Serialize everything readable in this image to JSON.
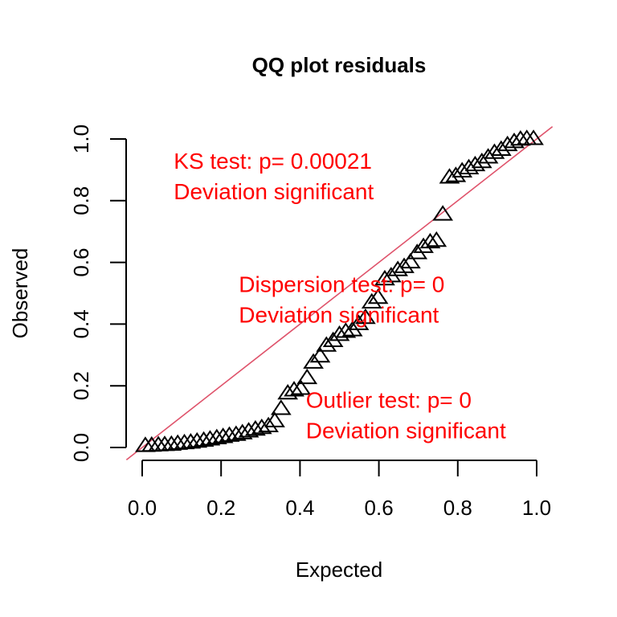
{
  "chart_data": {
    "type": "scatter",
    "title": "QQ plot residuals",
    "xlabel": "Expected",
    "ylabel": "Observed",
    "xlim": [
      0,
      1
    ],
    "ylim": [
      0,
      1
    ],
    "xticks": [
      "0.0",
      "0.2",
      "0.4",
      "0.6",
      "0.8",
      "1.0"
    ],
    "yticks": [
      "0.0",
      "0.2",
      "0.4",
      "0.6",
      "0.8",
      "1.0"
    ],
    "xtick_values": [
      0,
      0.2,
      0.4,
      0.6,
      0.8,
      1.0
    ],
    "ytick_values": [
      0,
      0.2,
      0.4,
      0.6,
      0.8,
      1.0
    ],
    "grid": false,
    "marker": "open-triangle",
    "reference_line": {
      "type": "identity",
      "slope": 1,
      "intercept": 0,
      "color": "#df536b"
    },
    "series": [
      {
        "name": "residuals",
        "color": "#000000",
        "x": [
          0.008,
          0.024,
          0.041,
          0.057,
          0.074,
          0.09,
          0.107,
          0.123,
          0.139,
          0.156,
          0.172,
          0.189,
          0.205,
          0.221,
          0.238,
          0.254,
          0.27,
          0.287,
          0.303,
          0.32,
          0.336,
          0.352,
          0.369,
          0.385,
          0.402,
          0.418,
          0.434,
          0.451,
          0.467,
          0.484,
          0.5,
          0.516,
          0.533,
          0.549,
          0.566,
          0.582,
          0.598,
          0.615,
          0.631,
          0.648,
          0.664,
          0.68,
          0.697,
          0.713,
          0.73,
          0.746,
          0.762,
          0.779,
          0.795,
          0.811,
          0.828,
          0.844,
          0.861,
          0.877,
          0.893,
          0.91,
          0.926,
          0.943,
          0.959,
          0.975,
          0.992
        ],
        "y": [
          0.005,
          0.006,
          0.007,
          0.008,
          0.009,
          0.012,
          0.014,
          0.016,
          0.019,
          0.022,
          0.026,
          0.03,
          0.034,
          0.038,
          0.041,
          0.046,
          0.052,
          0.058,
          0.063,
          0.069,
          0.085,
          0.125,
          0.175,
          0.185,
          0.19,
          0.225,
          0.275,
          0.295,
          0.33,
          0.345,
          0.365,
          0.375,
          0.38,
          0.4,
          0.42,
          0.47,
          0.485,
          0.545,
          0.555,
          0.575,
          0.585,
          0.6,
          0.63,
          0.65,
          0.665,
          0.67,
          0.755,
          0.875,
          0.88,
          0.895,
          0.905,
          0.915,
          0.925,
          0.94,
          0.955,
          0.965,
          0.98,
          0.99,
          0.998,
          1.0,
          1.0
        ]
      }
    ],
    "annotations": [
      {
        "lines": [
          "KS test: p= 0.00021",
          "Deviation  significant"
        ],
        "color": "#ff0000",
        "anchor": [
          0.08,
          0.93
        ]
      },
      {
        "lines": [
          "Dispersion test: p= 0",
          "Deviation  significant"
        ],
        "color": "#ff0000",
        "anchor": [
          0.245,
          0.53
        ]
      },
      {
        "lines": [
          "Outlier test: p= 0",
          "Deviation  significant"
        ],
        "color": "#ff0000",
        "anchor": [
          0.415,
          0.155
        ]
      }
    ]
  }
}
